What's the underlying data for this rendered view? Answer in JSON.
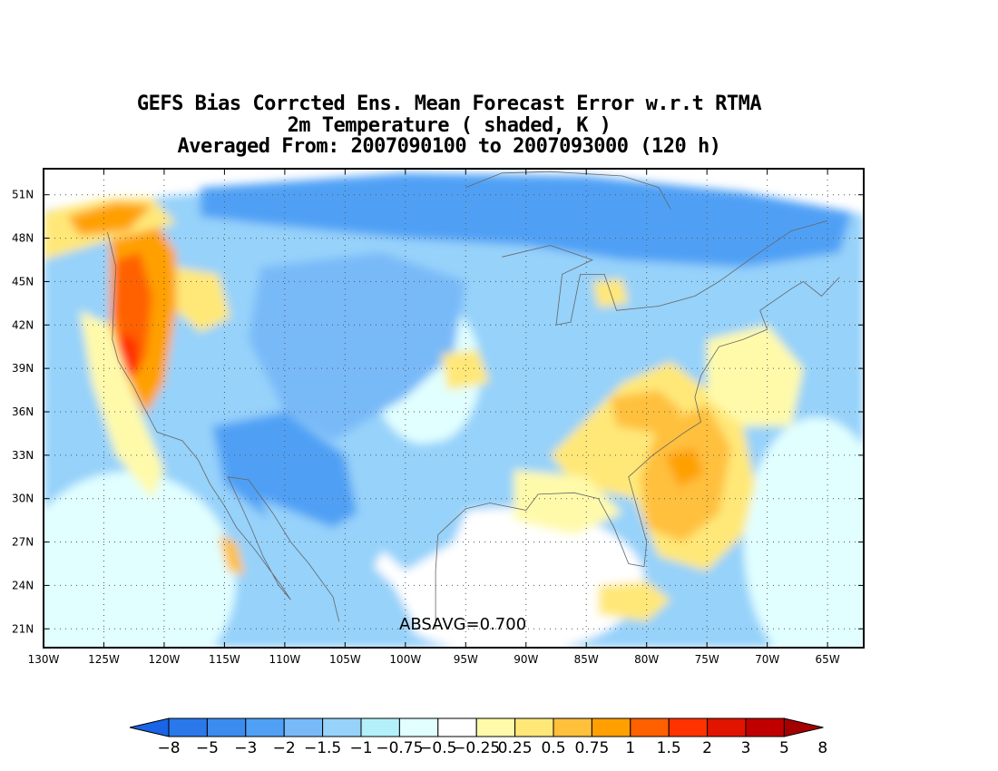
{
  "title_lines": [
    "GEFS Bias Corrcted Ens. Mean Forecast Error w.r.t RTMA",
    "2m Temperature ( shaded, K )",
    "Averaged From: 2007090100 to 2007093000 (120 h)"
  ],
  "annotation": "ABSAVG=0.700",
  "map": {
    "projection": "cylindrical",
    "lon_range": [
      -130,
      -62
    ],
    "lat_range": [
      19.7,
      52.8
    ],
    "grid": true,
    "lat_labels": [
      "51N",
      "48N",
      "45N",
      "42N",
      "39N",
      "36N",
      "33N",
      "30N",
      "27N",
      "24N",
      "21N"
    ],
    "lat_values": [
      51,
      48,
      45,
      42,
      39,
      36,
      33,
      30,
      27,
      24,
      21
    ],
    "lon_labels": [
      "130W",
      "125W",
      "120W",
      "115W",
      "110W",
      "105W",
      "100W",
      "95W",
      "90W",
      "85W",
      "80W",
      "75W",
      "70W",
      "65W"
    ],
    "lon_values": [
      -130,
      -125,
      -120,
      -115,
      -110,
      -105,
      -100,
      -95,
      -90,
      -85,
      -80,
      -75,
      -70,
      -65
    ],
    "colors": {
      "frame": "#000000",
      "grid": "#555555",
      "coast": "#666666"
    }
  },
  "colorbar": {
    "labels": [
      "−8",
      "−5",
      "−3",
      "−2",
      "−1.5",
      "−1",
      "−0.75",
      "−0.5",
      "−0.25",
      "0.25",
      "0.5",
      "0.75",
      "1",
      "1.5",
      "2",
      "3",
      "5",
      "8"
    ],
    "colors": [
      "#1a64e6",
      "#2b78eb",
      "#3c8cf0",
      "#50a0f5",
      "#78b9f8",
      "#96d2fa",
      "#b4f0fa",
      "#e1ffff",
      "#ffffff",
      "#fffaaa",
      "#ffe878",
      "#ffc03c",
      "#ffa000",
      "#ff6000",
      "#ff3200",
      "#e11400",
      "#c00000",
      "#a50000"
    ]
  },
  "regions": [
    {
      "name": "canada-blue",
      "color": "#50a0f5",
      "lonlat": [
        [
          -117,
          51.5
        ],
        [
          -100,
          52.5
        ],
        [
          -85,
          52.3
        ],
        [
          -72,
          51.2
        ],
        [
          -63,
          49.8
        ],
        [
          -64,
          47
        ],
        [
          -72,
          46
        ],
        [
          -82,
          46.5
        ],
        [
          -90,
          47.5
        ],
        [
          -100,
          48
        ],
        [
          -112,
          49
        ],
        [
          -117,
          49.5
        ]
      ]
    },
    {
      "name": "great-plains-lightblue",
      "color": "#78b9f8",
      "lonlat": [
        [
          -112,
          46
        ],
        [
          -102,
          47
        ],
        [
          -95,
          45
        ],
        [
          -96,
          40
        ],
        [
          -100,
          37
        ],
        [
          -106,
          34
        ],
        [
          -110,
          36
        ],
        [
          -113,
          41
        ]
      ]
    },
    {
      "name": "southwest-blue",
      "color": "#50a0f5",
      "lonlat": [
        [
          -116,
          35
        ],
        [
          -110,
          36
        ],
        [
          -105,
          33
        ],
        [
          -104,
          29
        ],
        [
          -108,
          27
        ],
        [
          -112,
          29
        ],
        [
          -115,
          31
        ]
      ]
    },
    {
      "name": "texas-lightblue",
      "color": "#96d2fa",
      "lonlat": [
        [
          -104,
          33
        ],
        [
          -97,
          34
        ],
        [
          -94,
          31
        ],
        [
          -96,
          27
        ],
        [
          -100,
          25
        ],
        [
          -104,
          28
        ]
      ]
    },
    {
      "name": "mexico-lightblue",
      "color": "#96d2fa",
      "lonlat": [
        [
          -112,
          30
        ],
        [
          -106,
          28
        ],
        [
          -101,
          24
        ],
        [
          -99,
          21
        ],
        [
          -103,
          21
        ],
        [
          -109,
          24
        ]
      ]
    },
    {
      "name": "great-lakes-lightblue",
      "color": "#96d2fa",
      "lonlat": [
        [
          -92,
          47
        ],
        [
          -84,
          46.5
        ],
        [
          -80,
          44
        ],
        [
          -84,
          41
        ],
        [
          -90,
          40
        ],
        [
          -94,
          43
        ]
      ]
    },
    {
      "name": "pacific-nw-orange",
      "color": "#ffa000",
      "lonlat": [
        [
          -124.5,
          49
        ],
        [
          -121,
          49.5
        ],
        [
          -119,
          47
        ],
        [
          -119,
          43
        ],
        [
          -120,
          38
        ],
        [
          -121.5,
          35.8
        ],
        [
          -123,
          38
        ],
        [
          -124.5,
          42
        ]
      ]
    },
    {
      "name": "oregon-red",
      "color": "#ff6000",
      "lonlat": [
        [
          -124,
          46.5
        ],
        [
          -122,
          47
        ],
        [
          -121,
          44
        ],
        [
          -121.5,
          40
        ],
        [
          -122.5,
          38.5
        ],
        [
          -123.5,
          40
        ],
        [
          -124.2,
          43
        ]
      ]
    },
    {
      "name": "california-red",
      "color": "#ff3200",
      "lonlat": [
        [
          -123.8,
          41.5
        ],
        [
          -122.3,
          41
        ],
        [
          -122,
          39
        ],
        [
          -123,
          38.2
        ],
        [
          -123.8,
          39.5
        ]
      ]
    },
    {
      "name": "bc-coast-yellow",
      "color": "#ffe878",
      "lonlat": [
        [
          -130,
          49.8
        ],
        [
          -125,
          50.7
        ],
        [
          -121,
          50.8
        ],
        [
          -119,
          49
        ],
        [
          -124,
          48
        ],
        [
          -128,
          47
        ],
        [
          -130,
          46.5
        ]
      ]
    },
    {
      "name": "bc-orange",
      "color": "#ffa000",
      "lonlat": [
        [
          -128,
          49.5
        ],
        [
          -124,
          50.5
        ],
        [
          -121,
          50.3
        ],
        [
          -123,
          48.5
        ],
        [
          -127,
          48.2
        ]
      ]
    },
    {
      "name": "idaho-yellow",
      "color": "#ffe878",
      "lonlat": [
        [
          -119,
          46
        ],
        [
          -115.5,
          45.5
        ],
        [
          -114.5,
          42.5
        ],
        [
          -117,
          41.5
        ],
        [
          -119,
          43
        ]
      ]
    },
    {
      "name": "offshore-yellow",
      "color": "#fffaaa",
      "lonlat": [
        [
          -127,
          43
        ],
        [
          -124.5,
          42
        ],
        [
          -122,
          36
        ],
        [
          -120,
          32
        ],
        [
          -121,
          30
        ],
        [
          -124,
          33
        ],
        [
          -126,
          38
        ]
      ]
    },
    {
      "name": "southeast-yellow",
      "color": "#ffe878",
      "lonlat": [
        [
          -88,
          33
        ],
        [
          -82,
          38
        ],
        [
          -78,
          39.5
        ],
        [
          -75,
          37.5
        ],
        [
          -72,
          35
        ],
        [
          -71,
          31
        ],
        [
          -72,
          27.5
        ],
        [
          -75,
          25
        ],
        [
          -79,
          26
        ],
        [
          -81,
          30
        ],
        [
          -86,
          31
        ]
      ]
    },
    {
      "name": "southeast-orange",
      "color": "#ffc03c",
      "lonlat": [
        [
          -79,
          35
        ],
        [
          -75,
          36.5
        ],
        [
          -73,
          33.5
        ],
        [
          -74,
          29
        ],
        [
          -77,
          27
        ],
        [
          -80,
          28
        ],
        [
          -80.5,
          31.5
        ]
      ]
    },
    {
      "name": "carolinas-darkorange",
      "color": "#ffa000",
      "lonlat": [
        [
          -78.5,
          33
        ],
        [
          -76,
          33.5
        ],
        [
          -75.3,
          31.7
        ],
        [
          -77.3,
          30.8
        ]
      ]
    },
    {
      "name": "tennessee-orange",
      "color": "#ffc03c",
      "lonlat": [
        [
          -83,
          37
        ],
        [
          -79,
          37.5
        ],
        [
          -77,
          36
        ],
        [
          -79,
          34.5
        ],
        [
          -82.5,
          35
        ]
      ]
    },
    {
      "name": "gulf-yellow",
      "color": "#fffaaa",
      "lonlat": [
        [
          -91,
          32
        ],
        [
          -85,
          31.5
        ],
        [
          -82,
          29
        ],
        [
          -86,
          27.5
        ],
        [
          -91,
          28.5
        ]
      ]
    },
    {
      "name": "nebraska-yellow",
      "color": "#ffe878",
      "lonlat": [
        [
          -97,
          40
        ],
        [
          -94,
          40.3
        ],
        [
          -93,
          38
        ],
        [
          -96.5,
          37.5
        ]
      ]
    },
    {
      "name": "michigan-yellow",
      "color": "#ffe878",
      "lonlat": [
        [
          -84.5,
          45
        ],
        [
          -82,
          45.2
        ],
        [
          -81.5,
          43.5
        ],
        [
          -84,
          43.2
        ]
      ]
    },
    {
      "name": "atlantic-yellow",
      "color": "#fffaaa",
      "lonlat": [
        [
          -75,
          41
        ],
        [
          -70,
          42
        ],
        [
          -67,
          39
        ],
        [
          -68,
          35
        ],
        [
          -72,
          35
        ],
        [
          -75,
          37
        ]
      ]
    },
    {
      "name": "baja-orange",
      "color": "#ffc03c",
      "lonlat": [
        [
          -115.5,
          27.5
        ],
        [
          -114,
          27
        ],
        [
          -113.3,
          24.7
        ],
        [
          -114.7,
          25
        ]
      ]
    },
    {
      "name": "cuba-yellow",
      "color": "#ffe878",
      "lonlat": [
        [
          -84,
          24
        ],
        [
          -80,
          24.3
        ],
        [
          -78,
          23
        ],
        [
          -80,
          21.5
        ],
        [
          -84,
          22
        ]
      ]
    }
  ],
  "coasts": [
    {
      "name": "west-coast",
      "lonlat": [
        [
          -124.7,
          48.4
        ],
        [
          -124,
          46
        ],
        [
          -124.2,
          43
        ],
        [
          -124.3,
          41
        ],
        [
          -123.8,
          39.5
        ],
        [
          -122.5,
          37.7
        ],
        [
          -121.8,
          36.5
        ],
        [
          -120.6,
          34.6
        ],
        [
          -118.5,
          34
        ],
        [
          -117.2,
          32.7
        ],
        [
          -116.2,
          31
        ],
        [
          -115,
          29.5
        ],
        [
          -114,
          28
        ],
        [
          -112.5,
          26.5
        ],
        [
          -110.3,
          24
        ],
        [
          -109.5,
          23
        ],
        [
          -110.5,
          24
        ],
        [
          -111.8,
          26
        ],
        [
          -112.8,
          28
        ],
        [
          -114.7,
          31.5
        ],
        [
          -113,
          31.3
        ],
        [
          -111,
          29
        ],
        [
          -109.5,
          27
        ],
        [
          -108,
          25.5
        ],
        [
          -106,
          23.2
        ],
        [
          -105.5,
          21.5
        ]
      ]
    },
    {
      "name": "gulf-coast",
      "lonlat": [
        [
          -97.5,
          21
        ],
        [
          -97.5,
          25
        ],
        [
          -97.3,
          27.5
        ],
        [
          -95,
          29.3
        ],
        [
          -93,
          29.7
        ],
        [
          -90,
          29.2
        ],
        [
          -89,
          30.3
        ],
        [
          -86,
          30.4
        ],
        [
          -84,
          30
        ],
        [
          -82.7,
          28
        ],
        [
          -81.5,
          25.5
        ],
        [
          -80.2,
          25.3
        ],
        [
          -80,
          27
        ],
        [
          -81,
          30
        ],
        [
          -81.5,
          31.5
        ],
        [
          -79.5,
          33
        ],
        [
          -77,
          34.5
        ],
        [
          -75.5,
          35.3
        ],
        [
          -76,
          37
        ],
        [
          -75.5,
          38.5
        ],
        [
          -74,
          40.5
        ],
        [
          -72,
          41
        ],
        [
          -70,
          41.7
        ],
        [
          -70.6,
          43
        ],
        [
          -68,
          44.5
        ],
        [
          -67,
          45
        ],
        [
          -65.5,
          44
        ],
        [
          -64,
          45.3
        ]
      ]
    },
    {
      "name": "great-lakes",
      "lonlat": [
        [
          -92,
          46.7
        ],
        [
          -88,
          47.5
        ],
        [
          -84.5,
          46.5
        ],
        [
          -87,
          45.5
        ],
        [
          -87.5,
          42
        ],
        [
          -86.3,
          42.2
        ],
        [
          -85.5,
          45.5
        ],
        [
          -83.5,
          45.5
        ],
        [
          -82.5,
          43
        ],
        [
          -79,
          43.3
        ],
        [
          -76,
          44
        ],
        [
          -74,
          45
        ],
        [
          -71,
          46.8
        ],
        [
          -68,
          48.5
        ],
        [
          -65,
          49.2
        ]
      ]
    },
    {
      "name": "hudson",
      "lonlat": [
        [
          -95,
          51.5
        ],
        [
          -92,
          52.5
        ],
        [
          -88,
          52.6
        ],
        [
          -82,
          52.3
        ],
        [
          -79,
          51.5
        ],
        [
          -78,
          50
        ]
      ]
    }
  ]
}
